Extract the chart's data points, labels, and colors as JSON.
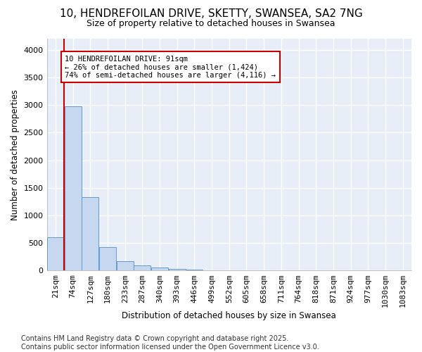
{
  "title": "10, HENDREFOILAN DRIVE, SKETTY, SWANSEA, SA2 7NG",
  "subtitle": "Size of property relative to detached houses in Swansea",
  "xlabel": "Distribution of detached houses by size in Swansea",
  "ylabel": "Number of detached properties",
  "bins": [
    "21sqm",
    "74sqm",
    "127sqm",
    "180sqm",
    "233sqm",
    "287sqm",
    "340sqm",
    "393sqm",
    "446sqm",
    "499sqm",
    "552sqm",
    "605sqm",
    "658sqm",
    "711sqm",
    "764sqm",
    "818sqm",
    "871sqm",
    "924sqm",
    "977sqm",
    "1030sqm",
    "1083sqm"
  ],
  "values": [
    600,
    2975,
    1330,
    420,
    175,
    90,
    55,
    35,
    20,
    5,
    0,
    0,
    0,
    0,
    0,
    0,
    0,
    0,
    0,
    0,
    0
  ],
  "bar_color": "#c5d8f0",
  "bar_edge_color": "#6699cc",
  "annotation_text": "10 HENDREFOILAN DRIVE: 91sqm\n← 26% of detached houses are smaller (1,424)\n74% of semi-detached houses are larger (4,116) →",
  "annotation_box_color": "#ffffff",
  "annotation_box_edge": "#cc0000",
  "red_line_color": "#cc0000",
  "footer_line1": "Contains HM Land Registry data © Crown copyright and database right 2025.",
  "footer_line2": "Contains public sector information licensed under the Open Government Licence v3.0.",
  "ylim": [
    0,
    4200
  ],
  "yticks": [
    0,
    500,
    1000,
    1500,
    2000,
    2500,
    3000,
    3500,
    4000
  ],
  "background_color": "#ffffff",
  "plot_bg_color": "#e8eef8",
  "grid_color": "#ffffff",
  "title_fontsize": 11,
  "subtitle_fontsize": 9,
  "axis_fontsize": 8.5,
  "tick_fontsize": 8,
  "footer_fontsize": 7
}
